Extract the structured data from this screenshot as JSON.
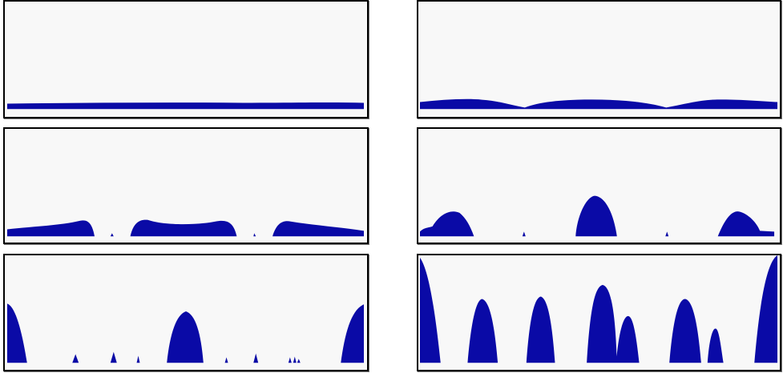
{
  "colors": {
    "fill": "#0a0aa6",
    "background": "#f8f8f8",
    "frame": "#000000"
  },
  "chart_data": [
    {
      "type": "area",
      "ylim": [
        0,
        1
      ],
      "xlim": [
        0,
        1
      ],
      "grid": false,
      "series": [
        {
          "x": [
            0,
            0.25,
            0.5,
            0.75,
            1
          ],
          "values": [
            0.055,
            0.06,
            0.055,
            0.06,
            0.055
          ]
        }
      ]
    },
    {
      "type": "area",
      "ylim": [
        0,
        1
      ],
      "xlim": [
        0,
        1
      ],
      "grid": false,
      "series": [
        {
          "x": [
            0,
            0.1,
            0.17,
            0.3,
            0.4,
            0.5,
            0.6,
            0.7,
            0.83,
            0.9,
            1
          ],
          "values": [
            0.07,
            0.1,
            0.11,
            0.09,
            0.03,
            0.1,
            0.11,
            0.1,
            0.03,
            0.1,
            0.07
          ]
        }
      ]
    },
    {
      "type": "area",
      "ylim": [
        0,
        1
      ],
      "xlim": [
        0,
        1
      ],
      "grid": false,
      "series": [
        {
          "x": [
            0,
            0.1,
            0.19,
            0.22,
            0.24,
            0.3,
            0.35,
            0.4,
            0.55,
            0.62,
            0.65,
            0.68,
            0.72,
            0.75,
            0.78,
            0.83,
            0.9,
            1
          ],
          "values": [
            0.06,
            0.08,
            0.12,
            0.14,
            0.12,
            0.0,
            0.0,
            0.13,
            0.1,
            0.14,
            0.1,
            0.0,
            0.0,
            0.13,
            0.14,
            0.1,
            0.08,
            0.05
          ]
        }
      ]
    },
    {
      "type": "area",
      "ylim": [
        0,
        1
      ],
      "xlim": [
        0,
        1
      ],
      "grid": false,
      "series": [
        {
          "x": [
            0,
            0.03,
            0.1,
            0.15,
            0.2,
            0.3,
            0.44,
            0.49,
            0.55,
            0.6,
            0.7,
            0.85,
            0.9,
            0.93,
            1
          ],
          "values": [
            0.06,
            0.05,
            0.22,
            0.24,
            0.0,
            0.0,
            0.0,
            0.37,
            0.37,
            0.0,
            0.0,
            0.0,
            0.24,
            0.22,
            0.06
          ]
        }
      ]
    },
    {
      "type": "area",
      "ylim": [
        0,
        1
      ],
      "xlim": [
        0,
        1
      ],
      "grid": false,
      "series": [
        {
          "x": [
            0,
            0.05,
            0.2,
            0.3,
            0.45,
            0.51,
            0.55,
            0.6,
            0.8,
            0.95,
            1
          ],
          "values": [
            0.55,
            0.0,
            0.0,
            0.09,
            0.0,
            0.48,
            0.48,
            0.0,
            0.06,
            0.0,
            0.55
          ]
        }
      ]
    },
    {
      "type": "area",
      "ylim": [
        0,
        1
      ],
      "xlim": [
        0,
        1
      ],
      "grid": false,
      "series": [
        {
          "x": [
            0,
            0.06,
            0.18,
            0.34,
            0.49,
            0.58,
            0.75,
            0.83,
            0.95,
            1
          ],
          "values": [
            0.98,
            0.0,
            0.6,
            0.63,
            0.72,
            0.45,
            0.58,
            0.3,
            0.0,
            1.0
          ]
        }
      ]
    }
  ]
}
